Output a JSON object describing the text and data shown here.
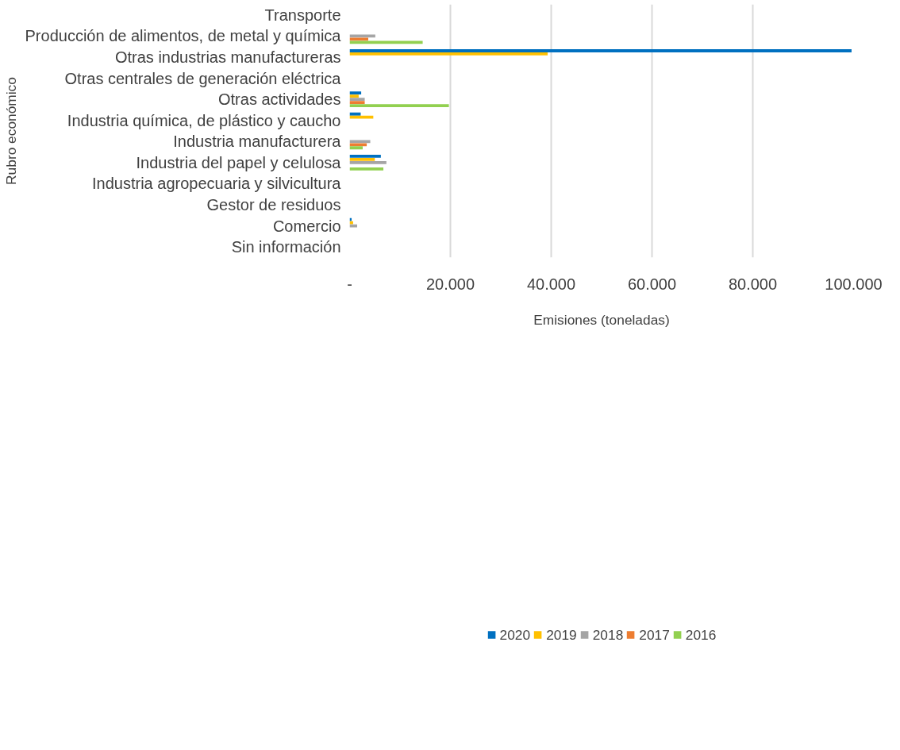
{
  "chart_data": {
    "type": "bar",
    "orientation": "horizontal",
    "xlabel": "Emisiones (toneladas)",
    "ylabel": "Rubro económico",
    "categories": [
      "Transporte",
      "Producción de alimentos, de metal y química",
      "Otras industrias manufactureras",
      "Otras centrales de generación eléctrica",
      "Otras actividades",
      "Industria química, de plástico y caucho",
      "Industria manufacturera",
      "Industria del papel y celulosa",
      "Industria agropecuaria y silvicultura",
      "Gestor de residuos",
      "Comercio",
      "Sin información"
    ],
    "series": [
      {
        "name": "2020",
        "color": "#0070c0",
        "values": [
          0,
          0,
          99600,
          0,
          2300,
          2200,
          0,
          6200,
          0,
          0,
          400,
          0
        ]
      },
      {
        "name": "2019",
        "color": "#ffc000",
        "values": [
          0,
          0,
          39300,
          0,
          1800,
          4700,
          0,
          5000,
          0,
          0,
          700,
          0
        ]
      },
      {
        "name": "2018",
        "color": "#a5a5a5",
        "values": [
          0,
          5100,
          0,
          0,
          3000,
          0,
          4100,
          7300,
          0,
          0,
          1500,
          0
        ]
      },
      {
        "name": "2017",
        "color": "#ed7d31",
        "values": [
          0,
          3700,
          0,
          0,
          3000,
          0,
          3400,
          0,
          0,
          0,
          0,
          0
        ]
      },
      {
        "name": "2016",
        "color": "#92d050",
        "values": [
          0,
          14500,
          0,
          0,
          19700,
          0,
          2600,
          6700,
          0,
          0,
          0,
          0
        ]
      }
    ],
    "xlim": [
      0,
      100000
    ],
    "xticks": [
      {
        "value": 0,
        "label": "-"
      },
      {
        "value": 20000,
        "label": "20.000"
      },
      {
        "value": 40000,
        "label": "40.000"
      },
      {
        "value": 60000,
        "label": "60.000"
      },
      {
        "value": 80000,
        "label": "80.000"
      },
      {
        "value": 100000,
        "label": "100.000"
      }
    ],
    "grid": "x",
    "legend": "bottom"
  }
}
